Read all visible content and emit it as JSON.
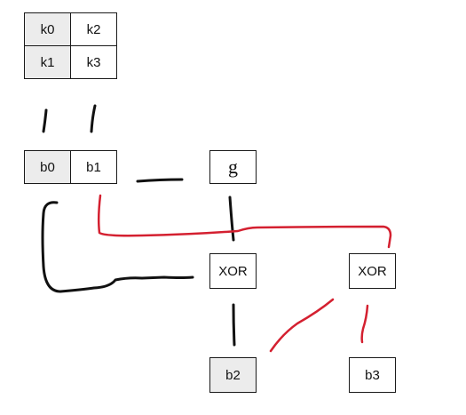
{
  "key_block": {
    "cells": [
      "k0",
      "k2",
      "k1",
      "k3"
    ]
  },
  "state_block": {
    "b0": "b0",
    "b1": "b1"
  },
  "function_box": "g",
  "xor_left": "XOR",
  "xor_right": "XOR",
  "outputs": {
    "b2": "b2",
    "b3": "b3"
  },
  "colors": {
    "ink": "#111111",
    "red": "#d42030",
    "shade": "#ececec"
  }
}
